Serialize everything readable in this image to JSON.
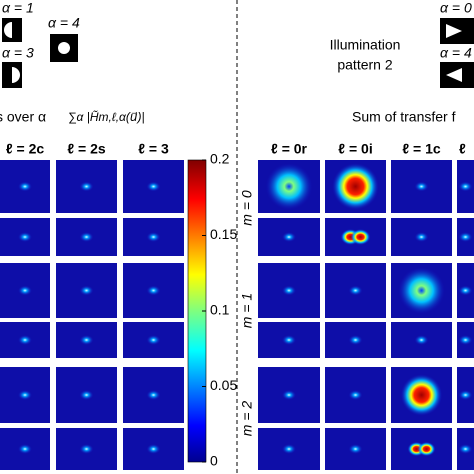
{
  "header": {
    "left_labels": [
      "α = 1",
      "α = 4",
      "α = 3"
    ],
    "center_title": [
      "Illumination",
      "pattern 2"
    ],
    "right_labels": [
      "α = 0",
      "α = 4"
    ]
  },
  "left_panel": {
    "title": "s over α",
    "formula": "∑α |H̃m,ℓ,α(u⃗)|",
    "columns": [
      "ℓ = 2c",
      "ℓ = 2s",
      "ℓ = 3"
    ]
  },
  "colorbar": {
    "ticks": [
      "0.2",
      "0.15",
      "0.1",
      "0.05",
      "0"
    ]
  },
  "right_panel": {
    "title": "Sum of transfer f",
    "columns": [
      "ℓ = 0r",
      "ℓ = 0i",
      "ℓ = 1c",
      "ℓ"
    ],
    "rows": [
      "m = 0",
      "m = 1",
      "m = 2"
    ]
  }
}
